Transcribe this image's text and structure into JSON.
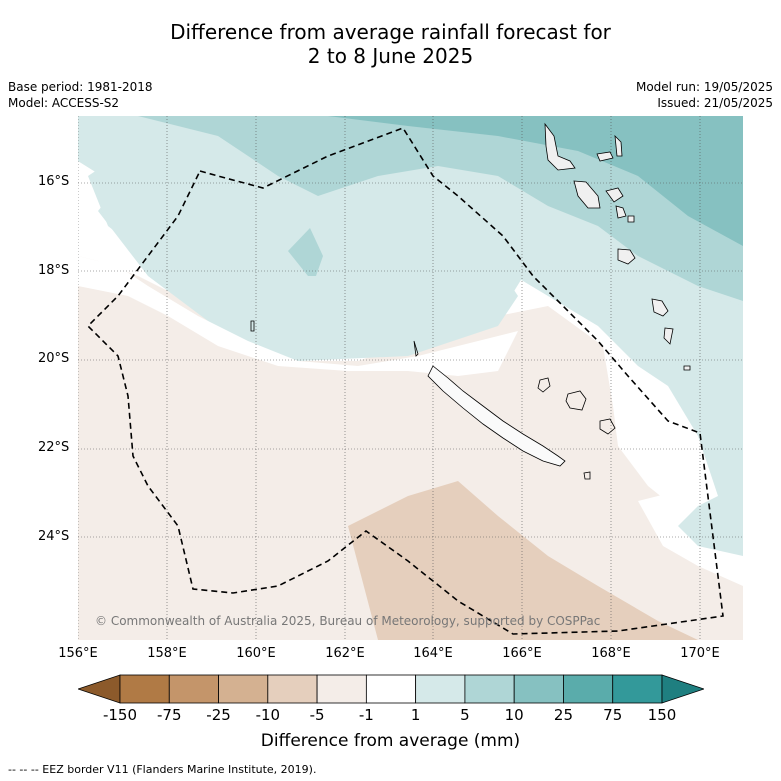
{
  "title_line1": "Difference from average rainfall forecast for",
  "title_line2": "2 to 8 June 2025",
  "meta_left": {
    "base_period": "Base period: 1981-2018",
    "model": "Model: ACCESS-S2"
  },
  "meta_right": {
    "model_run": "Model run: 19/05/2025",
    "issued": "Issued: 21/05/2025"
  },
  "copyright": "© Commonwealth of Australia 2025, Bureau of Meteorology, supported by COSPPac",
  "lat_labels": [
    "16°S",
    "18°S",
    "20°S",
    "22°S",
    "24°S"
  ],
  "lon_labels": [
    "156°E",
    "158°E",
    "160°E",
    "162°E",
    "164°E",
    "166°E",
    "168°E",
    "170°E"
  ],
  "legend": {
    "ticks": [
      "-150",
      "-75",
      "-25",
      "-10",
      "-5",
      "-1",
      "1",
      "5",
      "10",
      "25",
      "75",
      "150"
    ],
    "colors": [
      "#8c5a2b",
      "#b07a45",
      "#c4956a",
      "#d4b191",
      "#e5cfbd",
      "#f4ede8",
      "#ffffff",
      "#d5e9e9",
      "#afd6d6",
      "#86c1c1",
      "#5aacab",
      "#33999a",
      "#1f7f80"
    ],
    "title": "Difference from average (mm)"
  },
  "footnote": "-- -- -- EEZ border V11 (Flanders Marine Institute, 2019)."
}
